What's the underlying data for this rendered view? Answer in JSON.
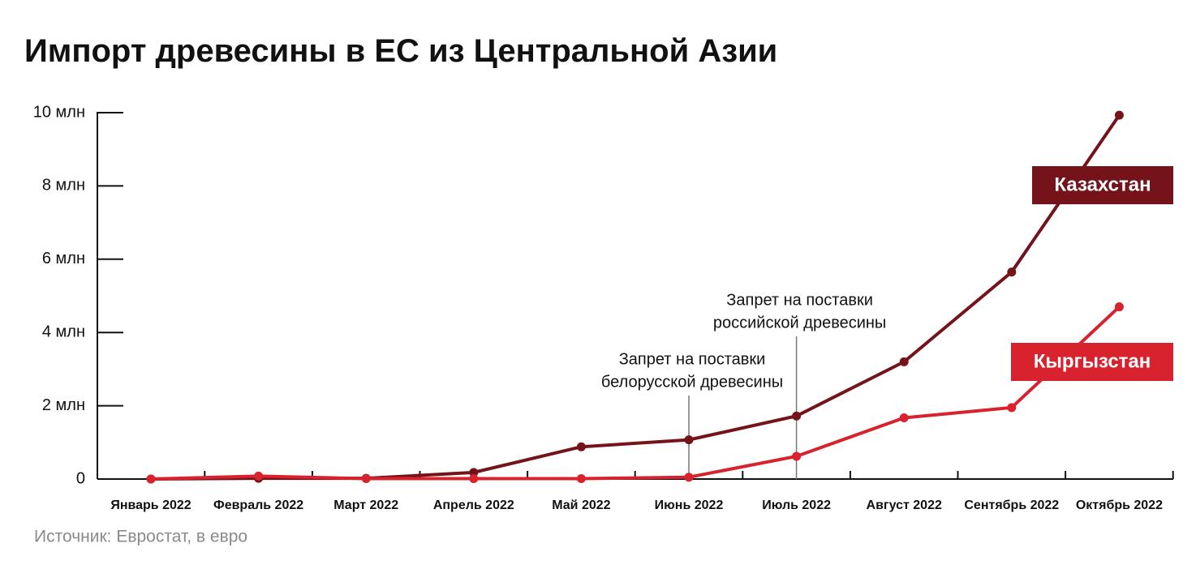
{
  "chart_data": {
    "type": "line",
    "title": "Импорт древесины в ЕС из Центральной Азии",
    "source": "Источник: Евростат, в евро",
    "categories": [
      "Январь 2022",
      "Февраль 2022",
      "Март 2022",
      "Апрель 2022",
      "Май 2022",
      "Июнь 2022",
      "Июль 2022",
      "Август 2022",
      "Сентябрь 2022",
      "Октябрь 2022"
    ],
    "series": [
      {
        "name": "Казахстан",
        "color": "#74141a",
        "values": [
          0,
          20000,
          20000,
          180000,
          880000,
          1070000,
          1720000,
          3200000,
          5650000,
          9930000
        ]
      },
      {
        "name": "Кыргызстан",
        "color": "#d8232e",
        "values": [
          0,
          80000,
          10000,
          10000,
          10000,
          50000,
          620000,
          1670000,
          1950000,
          4700000
        ]
      }
    ],
    "ylim": [
      0,
      10000000
    ],
    "yticks": [
      0,
      {
        "value": 2000000,
        "label": "2 млн"
      },
      {
        "value": 4000000,
        "label": "4 млн"
      },
      {
        "value": 6000000,
        "label": "6 млн"
      },
      {
        "value": 8000000,
        "label": "8 млн"
      },
      {
        "value": 10000000,
        "label": "10 млн"
      }
    ],
    "annotations": [
      {
        "x": "Июнь 2022",
        "text": [
          "Запрет на поставки",
          "белорусской древесины"
        ]
      },
      {
        "x": "Июль 2022",
        "text": [
          "Запрет на поставки",
          "российской древесины"
        ]
      }
    ]
  }
}
